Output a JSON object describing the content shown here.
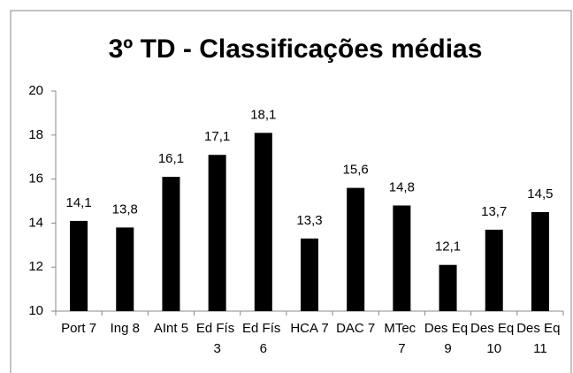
{
  "chart_data": {
    "type": "bar",
    "title": "3º TD - Classificações médias",
    "categories": [
      "Port 7",
      "Ing 8",
      "AInt 5",
      "Ed Fís 3",
      "Ed Fís 6",
      "HCA 7",
      "DAC 7",
      "MTec 7",
      "Des Eq 9",
      "Des Eq 10",
      "Des Eq 11"
    ],
    "values": [
      14.1,
      13.8,
      16.1,
      17.1,
      18.1,
      13.3,
      15.6,
      14.8,
      12.1,
      13.7,
      14.5
    ],
    "value_labels": [
      "14,1",
      "13,8",
      "16,1",
      "17,1",
      "18,1",
      "13,3",
      "15,6",
      "14,8",
      "12,1",
      "13,7",
      "14,5"
    ],
    "color": "#000000",
    "ylim": [
      10,
      20
    ],
    "yticks": [
      10,
      12,
      14,
      16,
      18,
      20
    ],
    "grid": false
  }
}
